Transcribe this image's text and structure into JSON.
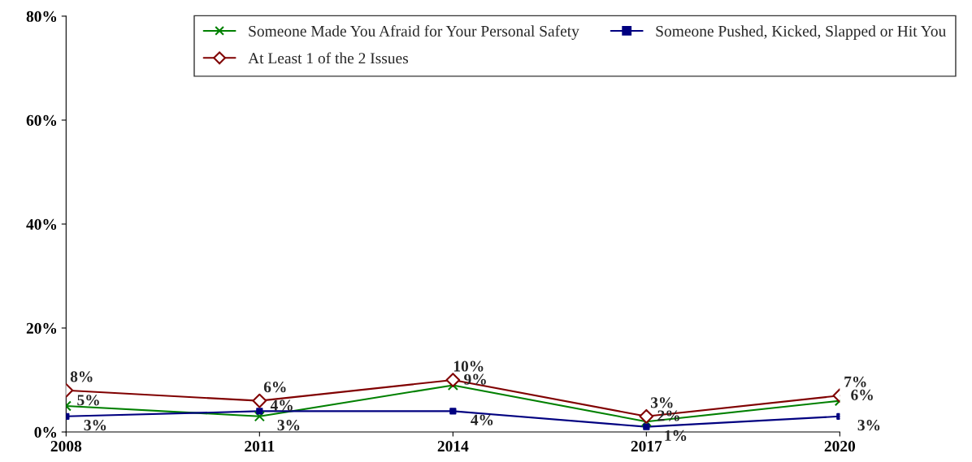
{
  "chart_data": {
    "type": "line",
    "x": [
      2008,
      2011,
      2014,
      2017,
      2020
    ],
    "xlim": [
      2008,
      2020
    ],
    "xticks": [
      2008,
      2011,
      2014,
      2017,
      2020
    ],
    "series": [
      {
        "name": "Someone Made You Afraid for Your Personal Safety",
        "color": "#008000",
        "marker": "cross",
        "values": [
          5,
          3,
          9,
          2,
          6
        ],
        "value_labels": [
          "5%",
          "3%",
          "9%",
          "2%",
          "6%"
        ]
      },
      {
        "name": "Someone Pushed, Kicked, Slapped or Hit You",
        "color": "#000080",
        "marker": "square",
        "values": [
          3,
          4,
          4,
          1,
          3
        ],
        "value_labels": [
          "3%",
          "4%",
          "4%",
          "1%",
          "3%"
        ]
      },
      {
        "name": "At Least 1 of the 2 Issues",
        "color": "#800000",
        "marker": "diamond",
        "values": [
          8,
          6,
          10,
          3,
          7
        ],
        "value_labels": [
          "8%",
          "6%",
          "10%",
          "3%",
          "7%"
        ]
      }
    ],
    "ylim": [
      0,
      80
    ],
    "yticks": [
      {
        "value": 0,
        "label": "0%"
      },
      {
        "value": 20,
        "label": "20%"
      },
      {
        "value": 40,
        "label": "40%"
      },
      {
        "value": 60,
        "label": "60%"
      },
      {
        "value": 80,
        "label": "80%"
      }
    ],
    "grid": false,
    "legend": "top right",
    "line_style": "solid"
  }
}
